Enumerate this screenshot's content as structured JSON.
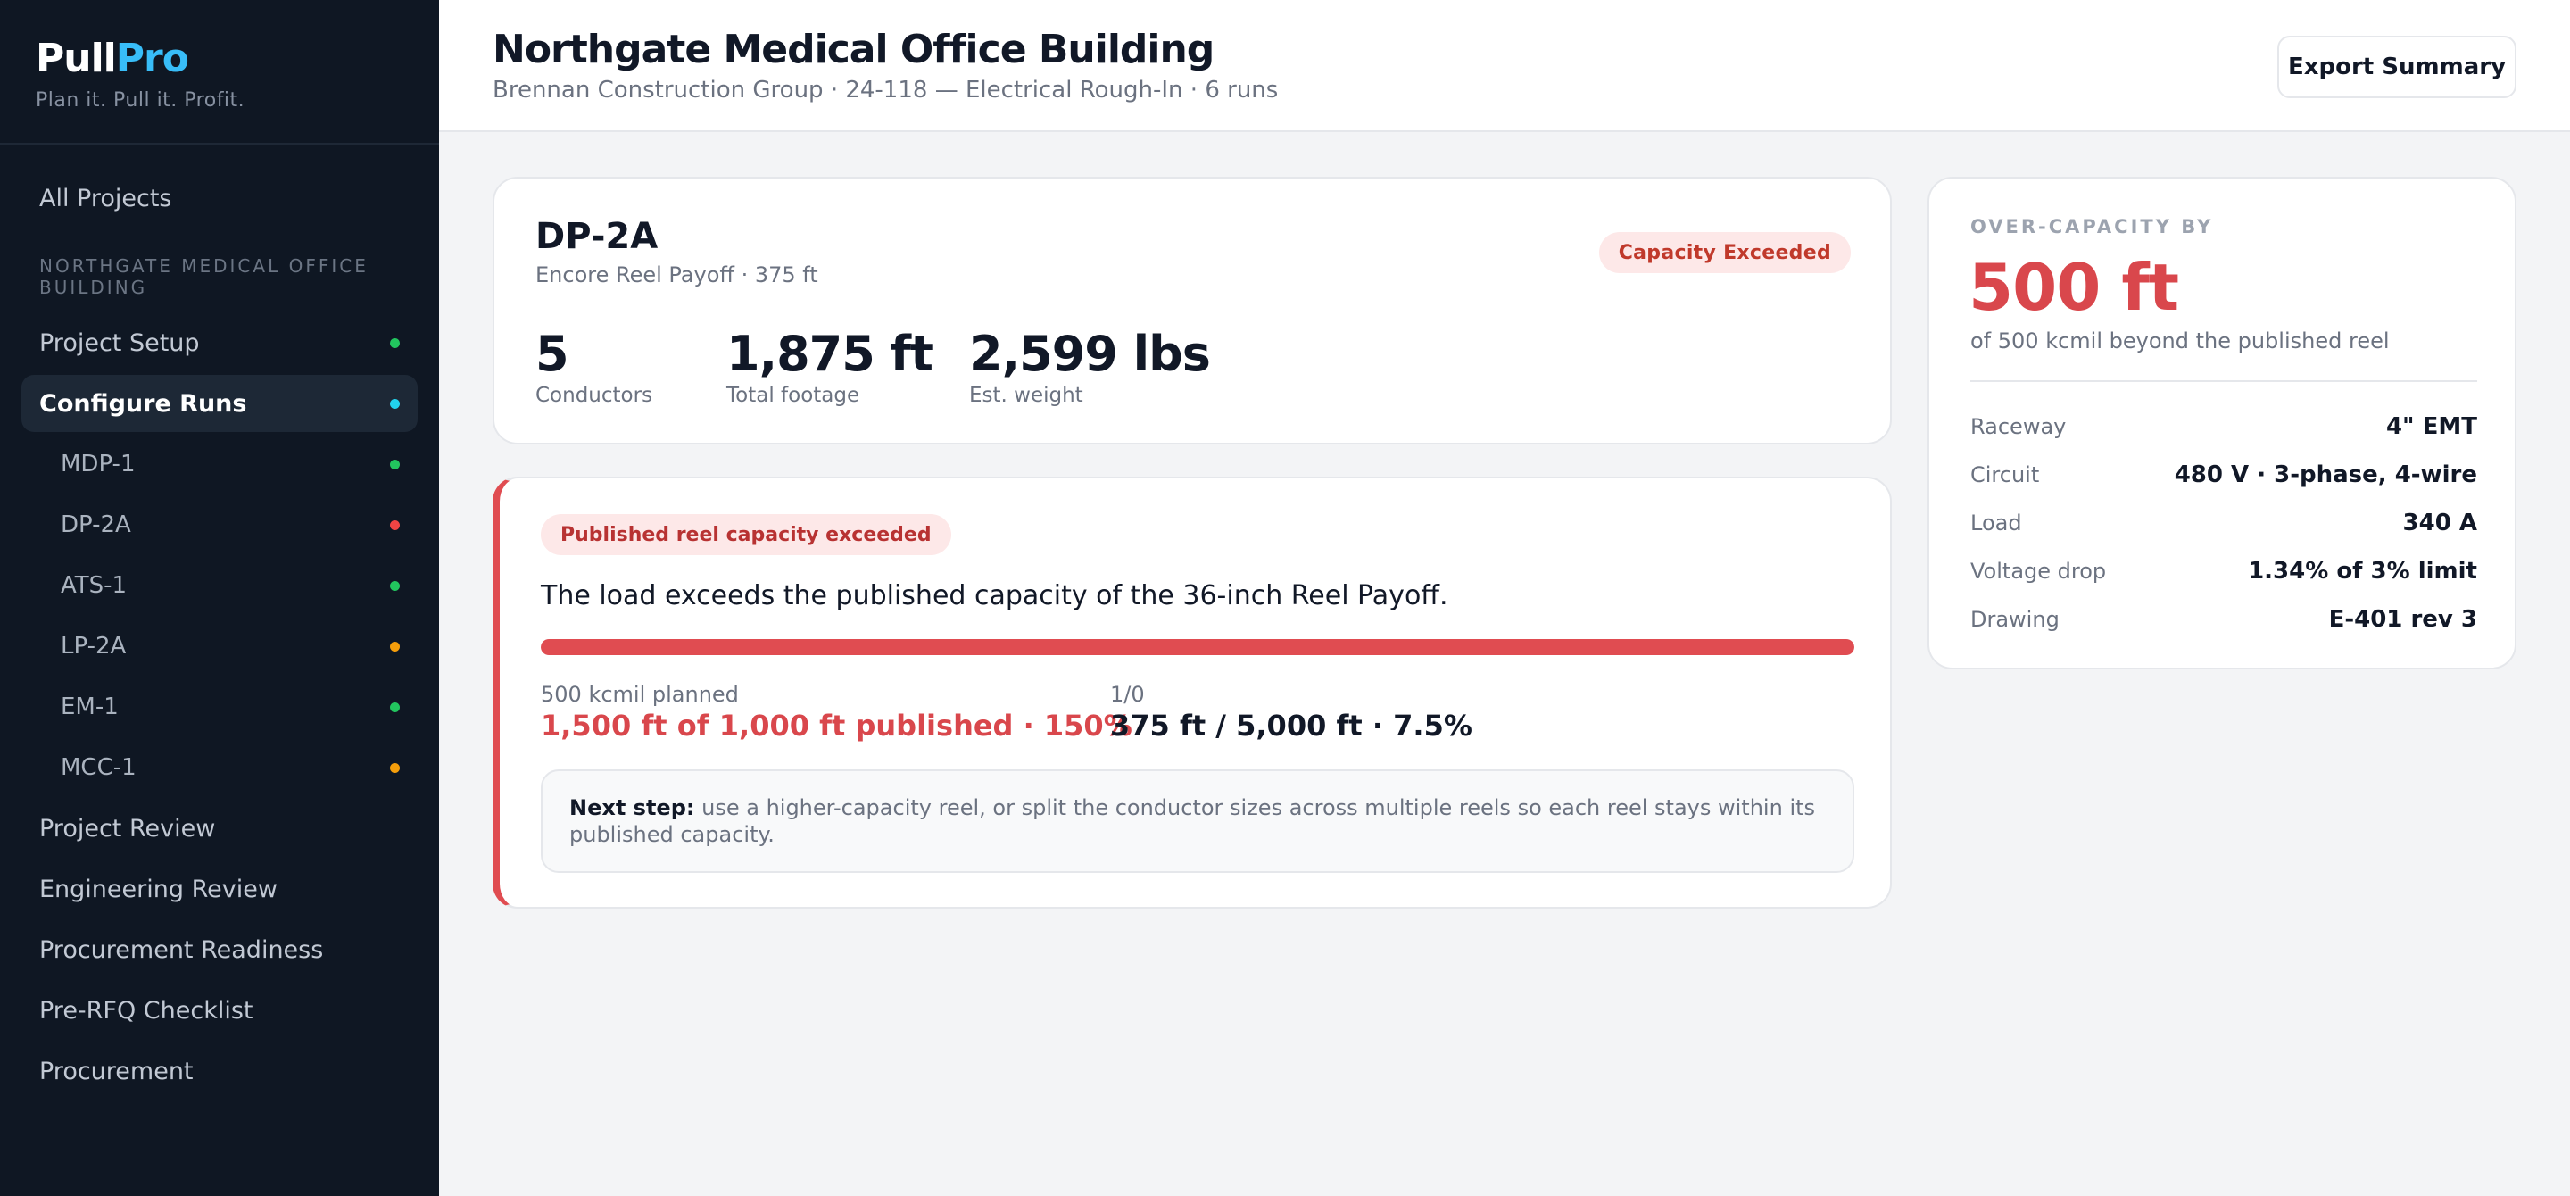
{
  "brand": {
    "pull": "Pull",
    "pro": "Pro",
    "tagline": "Plan it. Pull it. Profit."
  },
  "sidebar": {
    "all_projects": "All Projects",
    "section": "NORTHGATE MEDICAL OFFICE BUILDING",
    "items": [
      {
        "label": "Project Setup",
        "status": "green"
      },
      {
        "label": "Configure Runs",
        "status": "cyan",
        "active": true
      },
      {
        "label": "MDP-1",
        "status": "green"
      },
      {
        "label": "DP-2A",
        "status": "red"
      },
      {
        "label": "ATS-1",
        "status": "green"
      },
      {
        "label": "LP-2A",
        "status": "orange"
      },
      {
        "label": "EM-1",
        "status": "green"
      },
      {
        "label": "MCC-1",
        "status": "orange"
      },
      {
        "label": "Project Review"
      },
      {
        "label": "Engineering Review"
      },
      {
        "label": "Procurement Readiness"
      },
      {
        "label": "Pre-RFQ Checklist"
      },
      {
        "label": "Procurement"
      }
    ]
  },
  "header": {
    "title": "Northgate Medical Office Building",
    "subtitle": "Brennan Construction Group · 24-118 — Electrical Rough-In · 6 runs",
    "export_label": "Export Summary"
  },
  "run": {
    "name": "DP-2A",
    "subtitle": "Encore Reel Payoff · 375 ft",
    "badge": "Capacity Exceeded",
    "stats": [
      {
        "value": "5",
        "label": "Conductors"
      },
      {
        "value": "1,875 ft",
        "label": "Total footage"
      },
      {
        "value": "2,599 lbs",
        "label": "Est. weight"
      }
    ]
  },
  "alert": {
    "pill": "Published reel capacity exceeded",
    "message": "The load exceeds the published capacity of the 36-inch Reel Payoff.",
    "progress_fraction": 1.0,
    "metrics": [
      {
        "label": "500 kcmil planned",
        "value": "1,500 ft of 1,000 ft published · 150%"
      },
      {
        "label": "1/0",
        "value": "375 ft / 5,000 ft · 7.5%"
      }
    ],
    "next_step_label": "Next step:",
    "next_step_text": "use a higher-capacity reel, or split the conductor sizes across multiple reels so each reel stays within its published capacity."
  },
  "overcapacity": {
    "label": "OVER-CAPACITY BY",
    "value": "500 ft",
    "sub": "of 500 kcmil beyond the published reel",
    "specs": [
      {
        "label": "Raceway",
        "value": "4\" EMT"
      },
      {
        "label": "Circuit",
        "value": "480 V · 3-phase, 4-wire"
      },
      {
        "label": "Load",
        "value": "340 A"
      },
      {
        "label": "Voltage drop",
        "value": "1.34% of 3% limit"
      },
      {
        "label": "Drawing",
        "value": "E-401 rev 3"
      }
    ]
  },
  "colors": {
    "sidebar_bg": "#0f1723",
    "accent_cyan": "#38bdf8",
    "danger": "#e04c51",
    "success": "#22c55e",
    "warning": "#f59e0b"
  }
}
